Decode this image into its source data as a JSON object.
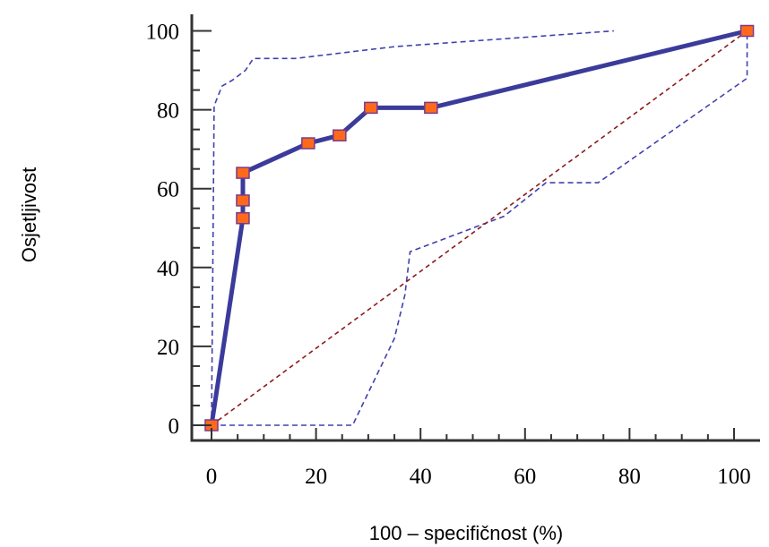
{
  "chart_data": {
    "type": "line",
    "xlabel": "100 – specifičnost (%)",
    "ylabel": "Osjetljivost",
    "xlim": [
      -3,
      104
    ],
    "ylim": [
      -4,
      104
    ],
    "x_ticks": [
      0,
      20,
      40,
      60,
      80,
      100
    ],
    "y_ticks": [
      0,
      20,
      40,
      60,
      80,
      100
    ],
    "grid": false,
    "legend": "none",
    "colors": {
      "roc": "#3b3b9b",
      "marker_fill": "#ff6a1a",
      "marker_stroke": "#7a3a8a",
      "ci": "#4040b0",
      "diagonal": "#8b1a1a",
      "axis": "#333333"
    },
    "series": [
      {
        "x": [
          0,
          6,
          6,
          6,
          18.5,
          24.5,
          30.5,
          42,
          102.5
        ],
        "y": [
          0,
          52.5,
          57,
          64,
          71.5,
          73.5,
          80.5,
          80.5,
          100
        ],
        "style": "solid-markers"
      },
      {
        "x": [
          0,
          0.5,
          2,
          4,
          6.5,
          8,
          16,
          35,
          77
        ],
        "y": [
          0,
          81,
          86,
          87.5,
          90,
          93,
          93,
          96,
          100
        ],
        "style": "dashed"
      },
      {
        "x": [
          0,
          27,
          35,
          37,
          38,
          56,
          64,
          74,
          102.5,
          102.5
        ],
        "y": [
          0,
          0,
          22,
          33,
          44,
          53,
          61.5,
          61.5,
          88,
          100
        ],
        "style": "dashed"
      },
      {
        "x": [
          0,
          102.5
        ],
        "y": [
          0,
          100
        ],
        "style": "dashed-diagonal"
      }
    ]
  }
}
